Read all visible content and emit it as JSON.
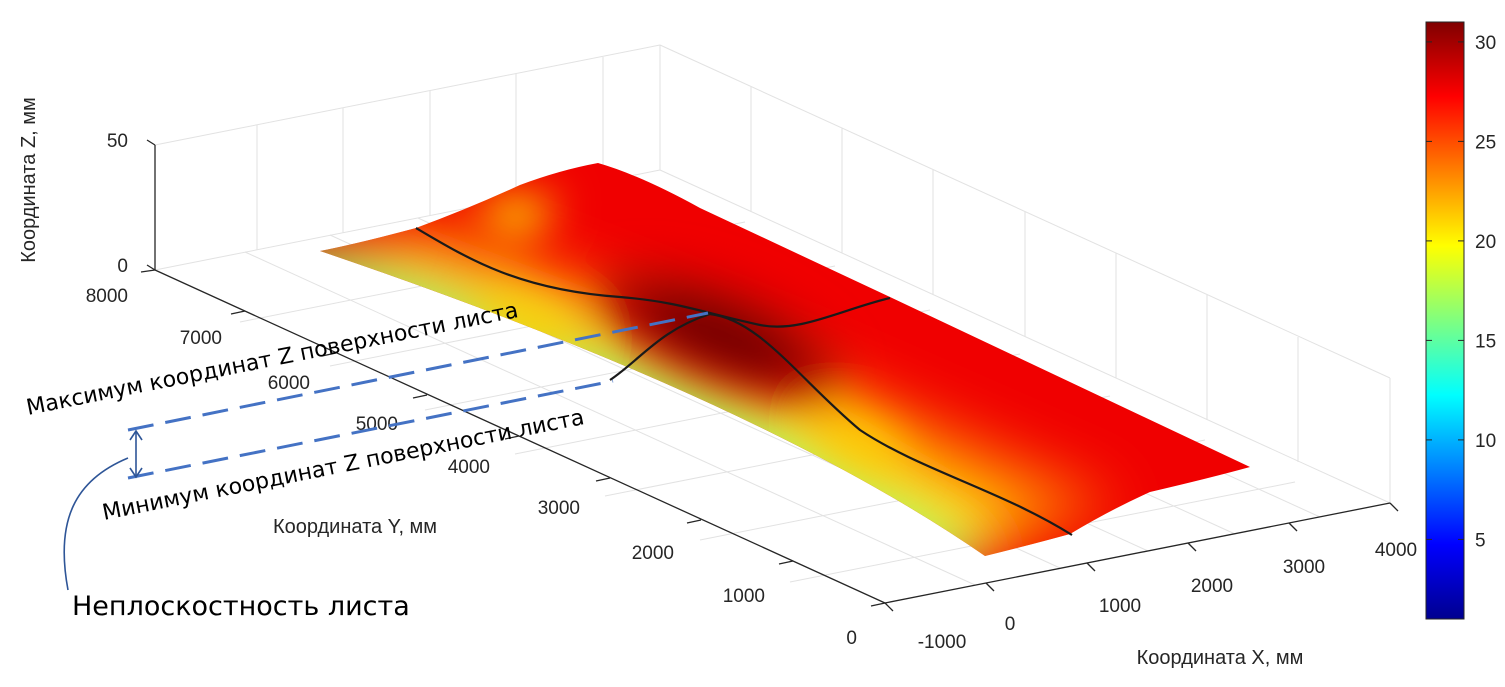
{
  "chart_data": {
    "type": "surface3d",
    "colormap": "jet",
    "axes": {
      "x": {
        "label": "Координата X, мм",
        "range": [
          -1000,
          4000
        ],
        "ticks": [
          "-1000",
          "0",
          "1000",
          "2000",
          "3000",
          "4000"
        ]
      },
      "y": {
        "label": "Координата Y, мм",
        "range": [
          0,
          8000
        ],
        "ticks": [
          "0",
          "1000",
          "2000",
          "3000",
          "4000",
          "5000",
          "6000",
          "7000",
          "8000"
        ]
      },
      "z": {
        "label": "Координата Z, мм",
        "range": [
          0,
          50
        ],
        "ticks": [
          "0",
          "50"
        ]
      }
    },
    "colorbar": {
      "range": [
        1,
        31
      ],
      "ticks": [
        "5",
        "10",
        "15",
        "20",
        "25",
        "30"
      ]
    },
    "surface": {
      "x_range": [
        0,
        3000
      ],
      "y_range": [
        0,
        8000
      ],
      "min_z": 16,
      "max_z": 31,
      "peak_location": {
        "x": 1500,
        "y": 5000
      },
      "description_values": {
        "edge_x0_z": 16,
        "edge_x3000_z": 27,
        "centre_ridge_z": 28
      }
    },
    "profile_lines": [
      {
        "name": "cross-section-y",
        "along": "x",
        "at_y": 5000
      },
      {
        "name": "longitudinal-x",
        "along": "y",
        "at_x": 1500
      }
    ],
    "annotations": [
      {
        "text": "Максимум координат Z поверхности листа"
      },
      {
        "text": "Минимум координат Z поверхности листа"
      },
      {
        "text": "Неплоскостность листа"
      }
    ],
    "grid": true
  },
  "colors": {
    "dashed_line": "#4472c4",
    "bracket": "#2e5597",
    "profile": "#1a1a1a",
    "axis": "#262626",
    "grid": "#e0e0e0"
  }
}
